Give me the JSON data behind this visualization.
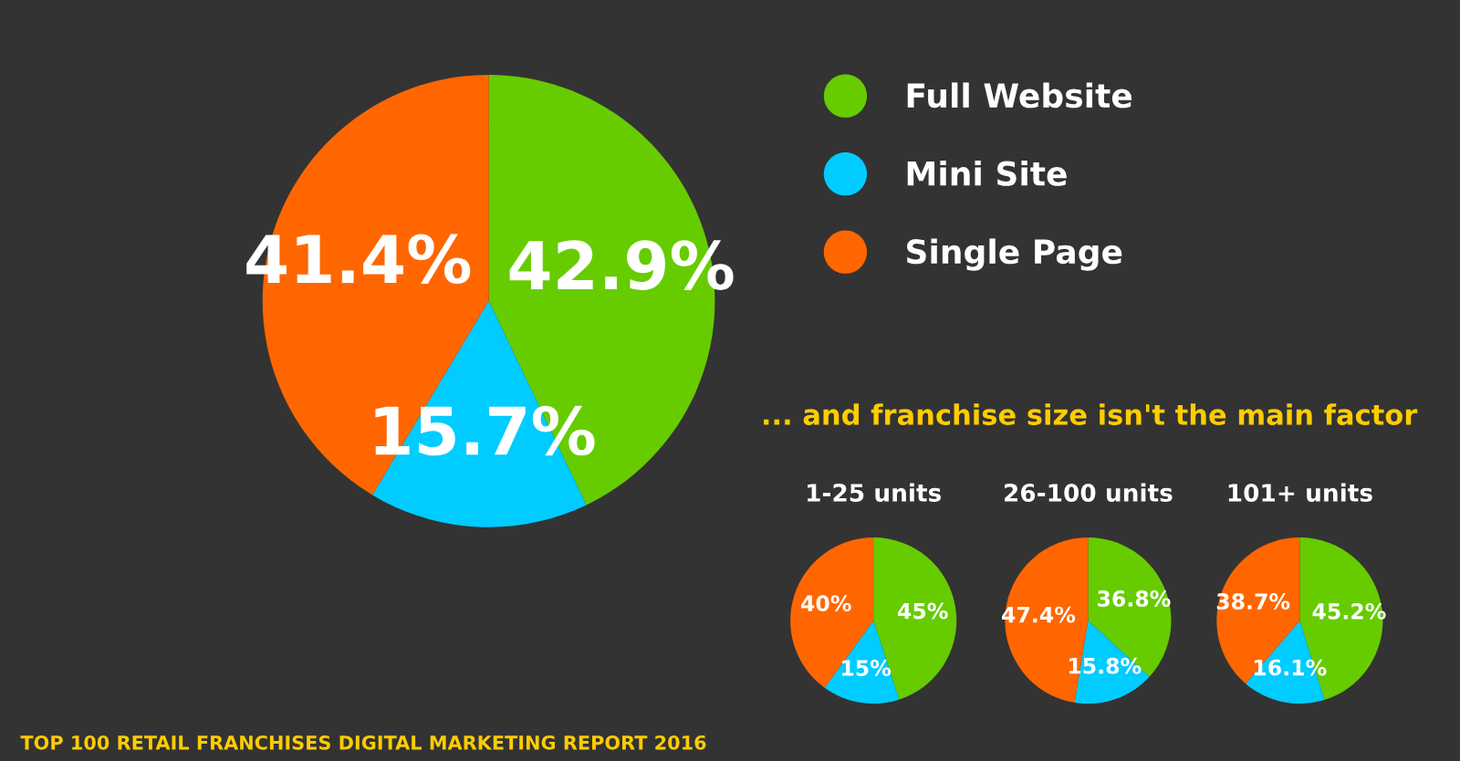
{
  "chart_data": [
    {
      "type": "pie",
      "categories": [
        "Full Website",
        "Mini Site",
        "Single Page"
      ],
      "values": [
        42.9,
        15.7,
        41.4
      ],
      "value_labels": [
        "42.9%",
        "15.7%",
        "41.4%"
      ],
      "colors": [
        "#66cc00",
        "#00ccff",
        "#ff6600"
      ],
      "legend": "right",
      "annotations": [
        "... and franchise size isn't the main factor",
        "TOP 100 RETAIL FRANCHISES DIGITAL MARKETING REPORT 2016"
      ]
    },
    {
      "type": "pie",
      "title": "1-25 units",
      "categories": [
        null,
        null,
        null
      ],
      "values": [
        45,
        15,
        40
      ],
      "value_labels": [
        "45%",
        "15%",
        "40%"
      ],
      "colors": [
        "#66cc00",
        "#00ccff",
        "#ff6600"
      ]
    },
    {
      "type": "pie",
      "title": "26-100 units",
      "categories": [
        null,
        null,
        null
      ],
      "values": [
        36.8,
        15.8,
        47.4
      ],
      "value_labels": [
        "36.8%",
        "15.8%",
        "47.4%"
      ],
      "colors": [
        "#66cc00",
        "#00ccff",
        "#ff6600"
      ]
    },
    {
      "type": "pie",
      "title": "101+ units",
      "categories": [
        null,
        null,
        null
      ],
      "values": [
        45.2,
        16.1,
        38.7
      ],
      "value_labels": [
        "45.2%",
        "16.1%",
        "38.7%"
      ],
      "colors": [
        "#66cc00",
        "#00ccff",
        "#ff6600"
      ]
    }
  ]
}
